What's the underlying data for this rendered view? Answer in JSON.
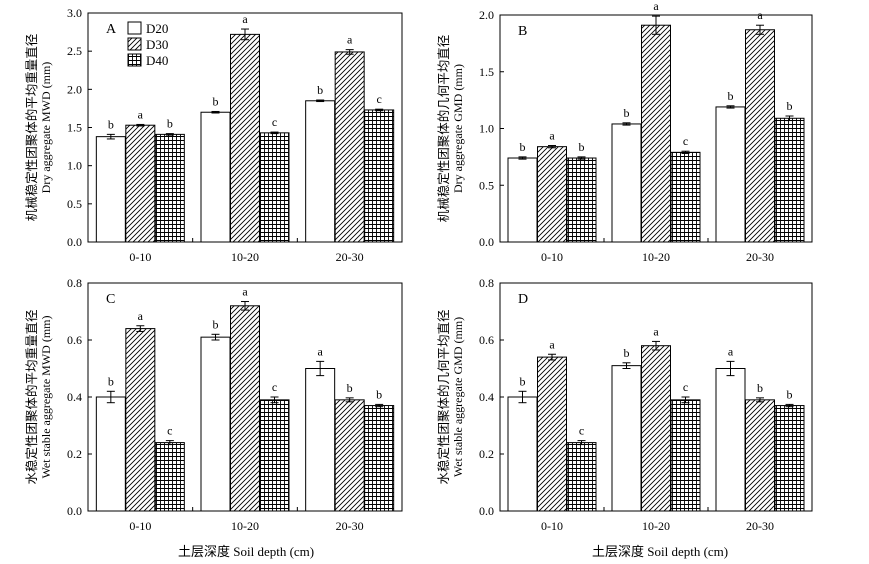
{
  "legend": [
    {
      "name": "D20",
      "pattern": "white"
    },
    {
      "name": "D30",
      "pattern": "hatch"
    },
    {
      "name": "D40",
      "pattern": "grid"
    }
  ],
  "x_axis_title": "土层深度 Soil depth (cm)",
  "chart_data": [
    {
      "type": "bar",
      "panel_label": "A",
      "ylabel_cn": "机械稳定性团聚体的平均重量直径",
      "ylabel_en": "Dry aggregate MWD (mm)",
      "categories": [
        "0-10",
        "10-20",
        "20-30"
      ],
      "ylim": [
        0,
        3.0
      ],
      "yticks": [
        "0.0",
        "0.5",
        "1.0",
        "1.5",
        "2.0",
        "2.5",
        "3.0"
      ],
      "legend_position": "top-left",
      "series": [
        {
          "name": "D20",
          "values": [
            1.38,
            1.7,
            1.85
          ],
          "errors": [
            0.03,
            0.01,
            0.01
          ],
          "letters": [
            "b",
            "b",
            "b"
          ]
        },
        {
          "name": "D30",
          "values": [
            1.53,
            2.72,
            2.49
          ],
          "errors": [
            0.01,
            0.07,
            0.03
          ],
          "letters": [
            "a",
            "a",
            "a"
          ]
        },
        {
          "name": "D40",
          "values": [
            1.41,
            1.43,
            1.73
          ],
          "errors": [
            0.01,
            0.01,
            0.01
          ],
          "letters": [
            "b",
            "c",
            "c"
          ]
        }
      ]
    },
    {
      "type": "bar",
      "panel_label": "B",
      "ylabel_cn": "机械稳定性团聚体的几何平均直径",
      "ylabel_en": "Dry aggregate GMD (mm)",
      "categories": [
        "0-10",
        "10-20",
        "20-30"
      ],
      "ylim": [
        0,
        2.0
      ],
      "yticks": [
        "0.0",
        "0.5",
        "1.0",
        "1.5",
        "2.0"
      ],
      "series": [
        {
          "name": "D20",
          "values": [
            0.74,
            1.04,
            1.19
          ],
          "errors": [
            0.01,
            0.01,
            0.01
          ],
          "letters": [
            "b",
            "b",
            "b"
          ]
        },
        {
          "name": "D30",
          "values": [
            0.84,
            1.91,
            1.87
          ],
          "errors": [
            0.01,
            0.08,
            0.04
          ],
          "letters": [
            "a",
            "a",
            "a"
          ]
        },
        {
          "name": "D40",
          "values": [
            0.74,
            0.79,
            1.09
          ],
          "errors": [
            0.01,
            0.01,
            0.02
          ],
          "letters": [
            "b",
            "c",
            "b"
          ]
        }
      ]
    },
    {
      "type": "bar",
      "panel_label": "C",
      "ylabel_cn": "水稳定性团聚体的平均重量直径",
      "ylabel_en": "Wet stable aggregate MWD (mm)",
      "categories": [
        "0-10",
        "10-20",
        "20-30"
      ],
      "ylim": [
        0,
        0.8
      ],
      "yticks": [
        "0.0",
        "0.2",
        "0.4",
        "0.6",
        "0.8"
      ],
      "series": [
        {
          "name": "D20",
          "values": [
            0.4,
            0.61,
            0.5
          ],
          "errors": [
            0.02,
            0.01,
            0.025
          ],
          "letters": [
            "b",
            "b",
            "a"
          ]
        },
        {
          "name": "D30",
          "values": [
            0.64,
            0.72,
            0.39
          ],
          "errors": [
            0.01,
            0.015,
            0.007
          ],
          "letters": [
            "a",
            "a",
            "b"
          ]
        },
        {
          "name": "D40",
          "values": [
            0.24,
            0.39,
            0.37
          ],
          "errors": [
            0.007,
            0.01,
            0.004
          ],
          "letters": [
            "c",
            "c",
            "b"
          ]
        }
      ]
    },
    {
      "type": "bar",
      "panel_label": "D",
      "ylabel_cn": "水稳定性团聚体的几何平均直径",
      "ylabel_en": "Wet stable aggregate GMD (mm)",
      "categories": [
        "0-10",
        "10-20",
        "20-30"
      ],
      "ylim": [
        0,
        0.8
      ],
      "yticks": [
        "0.0",
        "0.2",
        "0.4",
        "0.6",
        "0.8"
      ],
      "series": [
        {
          "name": "D20",
          "values": [
            0.4,
            0.51,
            0.5
          ],
          "errors": [
            0.02,
            0.01,
            0.025
          ],
          "letters": [
            "b",
            "b",
            "a"
          ]
        },
        {
          "name": "D30",
          "values": [
            0.54,
            0.58,
            0.39
          ],
          "errors": [
            0.01,
            0.015,
            0.007
          ],
          "letters": [
            "a",
            "a",
            "b"
          ]
        },
        {
          "name": "D40",
          "values": [
            0.24,
            0.39,
            0.37
          ],
          "errors": [
            0.007,
            0.01,
            0.004
          ],
          "letters": [
            "c",
            "c",
            "b"
          ]
        }
      ]
    }
  ]
}
